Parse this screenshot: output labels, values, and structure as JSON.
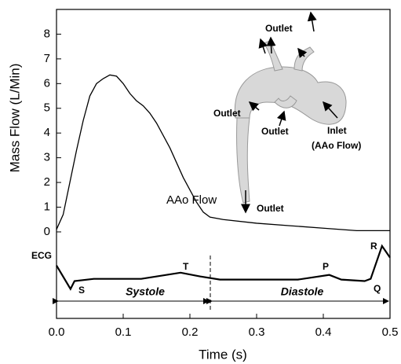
{
  "chart_data": {
    "type": "line",
    "xlabel": "Time (s)",
    "ylabel": "Mass Flow (L/Min)",
    "xlim": [
      0,
      0.5
    ],
    "ylim": [
      -3.5,
      9
    ],
    "xticks": [
      {
        "value": 0,
        "label": "0.0"
      },
      0.1,
      0.2,
      0.3,
      0.4,
      0.5
    ],
    "yticks": [
      0,
      1,
      2,
      3,
      4,
      5,
      6,
      7,
      8
    ],
    "series": [
      {
        "name": "AAo Flow",
        "color": "#000000",
        "x": [
          0,
          0.01,
          0.02,
          0.03,
          0.04,
          0.05,
          0.06,
          0.07,
          0.08,
          0.09,
          0.1,
          0.11,
          0.12,
          0.13,
          0.14,
          0.15,
          0.16,
          0.17,
          0.18,
          0.19,
          0.2,
          0.21,
          0.22,
          0.23,
          0.25,
          0.3,
          0.35,
          0.4,
          0.45,
          0.5
        ],
        "values": [
          0.1,
          0.7,
          2.0,
          3.3,
          4.5,
          5.5,
          6.0,
          6.2,
          6.35,
          6.3,
          6.0,
          5.6,
          5.3,
          5.1,
          4.8,
          4.4,
          3.9,
          3.4,
          2.8,
          2.2,
          1.7,
          1.2,
          0.8,
          0.6,
          0.5,
          0.35,
          0.25,
          0.15,
          0.05,
          0.05
        ]
      },
      {
        "name": "ECG",
        "color": "#000000",
        "x": [
          0,
          0.021,
          0.027,
          0.056,
          0.127,
          0.186,
          0.215,
          0.245,
          0.362,
          0.409,
          0.427,
          0.462,
          0.471,
          0.488,
          0.5
        ],
        "values": [
          -1.36,
          -2.31,
          -1.99,
          -1.9,
          -1.9,
          -1.65,
          -1.8,
          -1.93,
          -1.93,
          -1.74,
          -1.93,
          -1.99,
          -1.9,
          -0.57,
          -1.04
        ]
      }
    ],
    "annotations": [
      "S",
      "T",
      "P",
      "Q",
      "R",
      "Systole",
      "Diastole",
      "Outlet",
      "Outlet",
      "Outlet",
      "Outlet",
      "Inlet",
      "(AAo Flow)"
    ]
  }
}
